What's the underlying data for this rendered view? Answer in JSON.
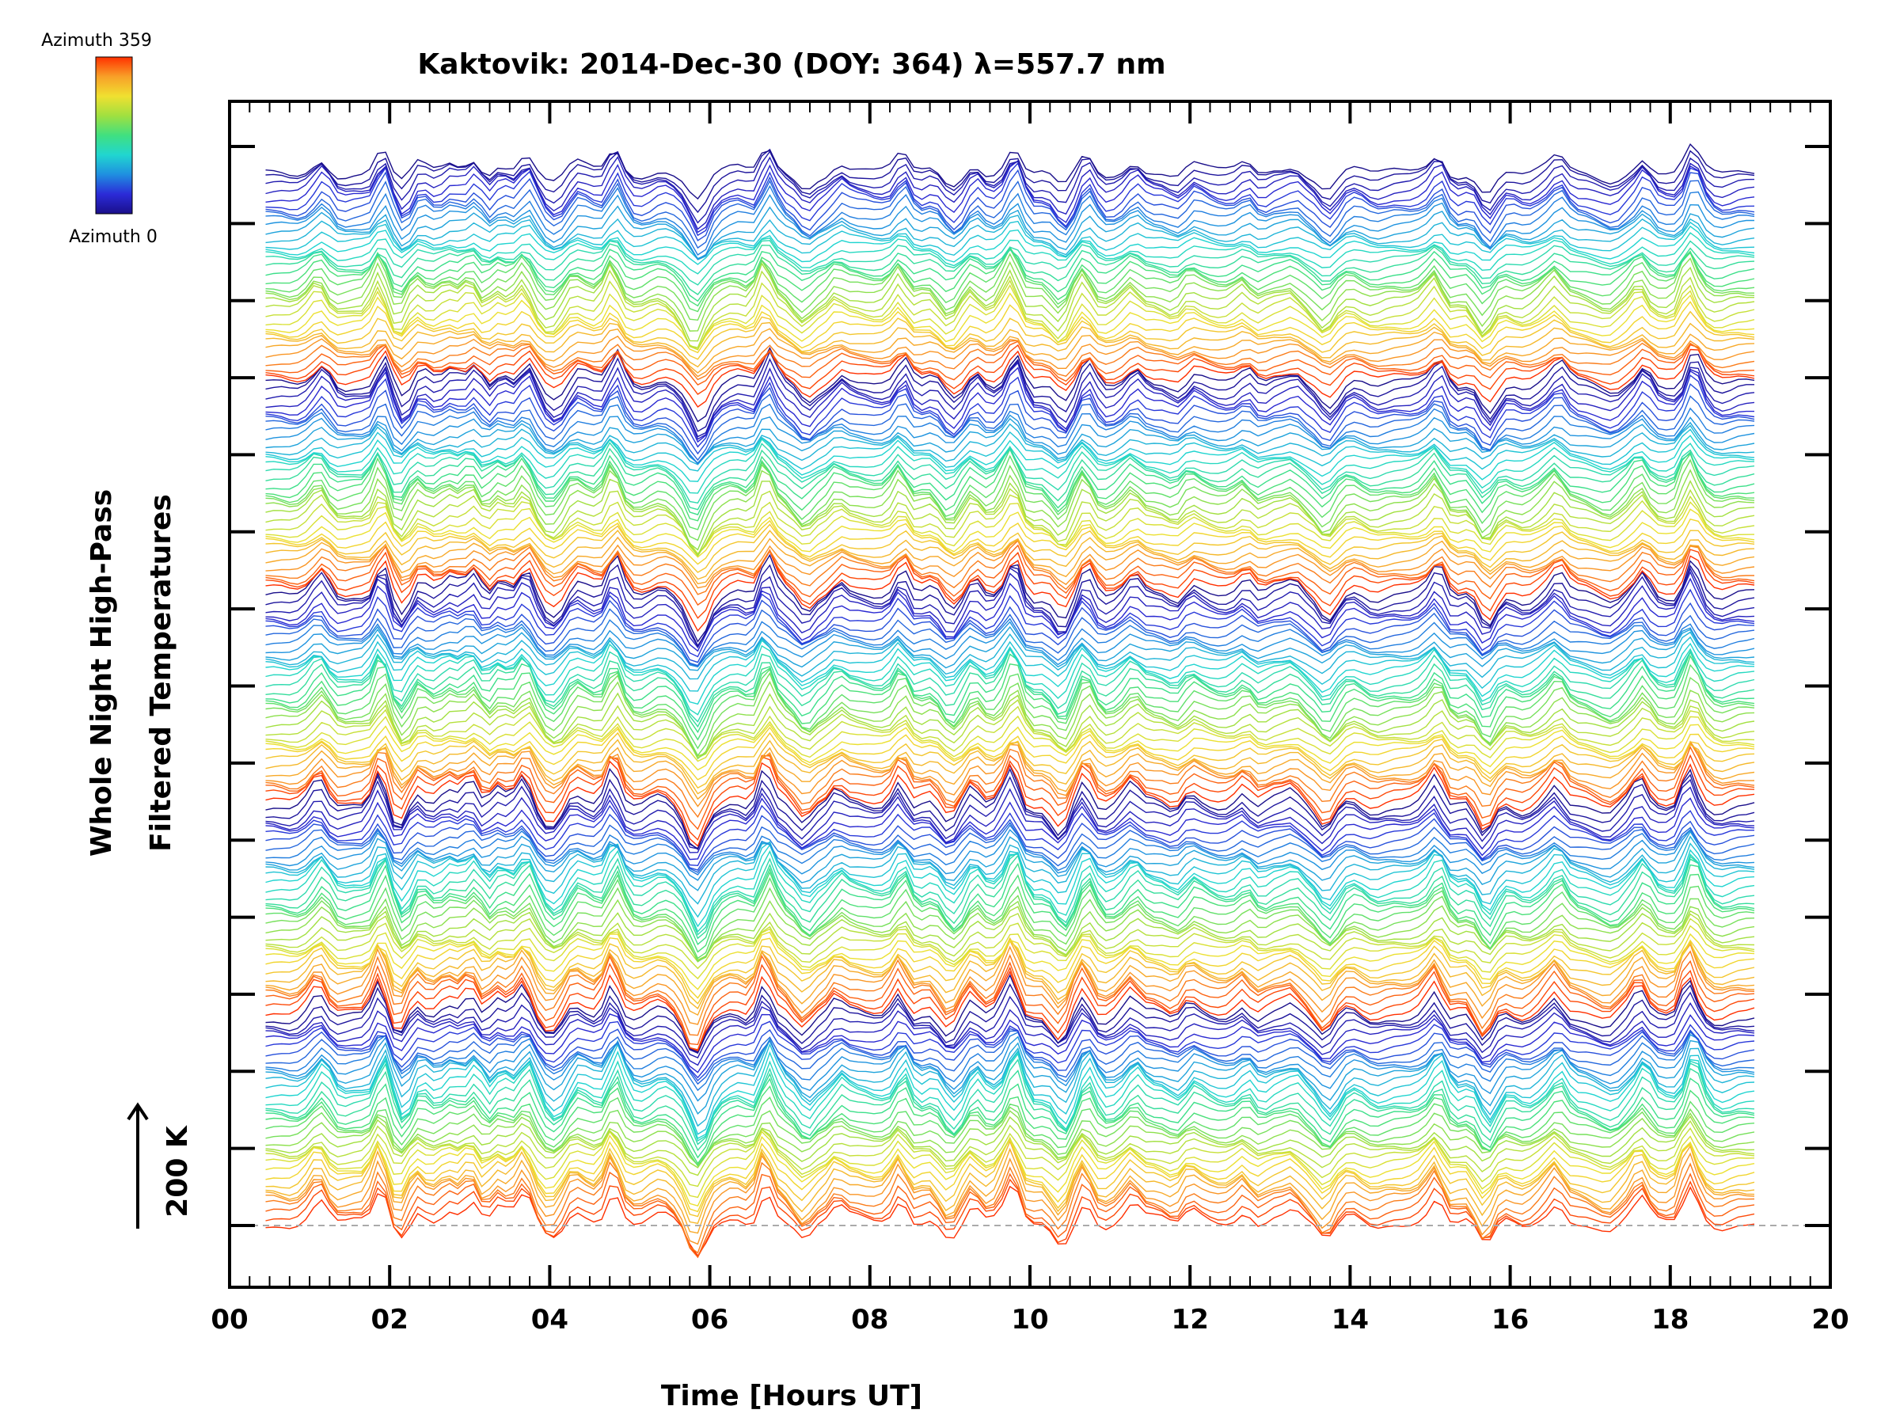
{
  "chart_data": {
    "type": "line",
    "title": "Kaktovik: 2014-Dec-30 (DOY: 364) λ=557.7 nm",
    "xlabel": "Time [Hours UT]",
    "ylabel_lines": [
      "Whole Night High-Pass",
      "Filtered Temperatures"
    ],
    "xlim": [
      0,
      20
    ],
    "x_ticks": [
      "00",
      "02",
      "04",
      "06",
      "08",
      "10",
      "12",
      "14",
      "16",
      "18",
      "20"
    ],
    "x_minor_step": 0.25,
    "scale_bar": {
      "label": "200 K",
      "value_K": 200
    },
    "colorbar": {
      "top_label": "Azimuth 359",
      "bottom_label": "Azimuth 0",
      "colormap": "rainbow",
      "colors": [
        "#1a0f8a",
        "#2b2bd8",
        "#1f8fe0",
        "#20d6d0",
        "#40e080",
        "#a0e040",
        "#f0e030",
        "#f8a028",
        "#ff3000"
      ]
    },
    "series_description": "Stacked high-pass filtered temperature traces, one per azimuth (0–359), vertically offset; colour encodes azimuth",
    "series_count": 180,
    "time_range_hours": [
      0.45,
      19.05
    ],
    "baseline_style": "dashed grey"
  }
}
